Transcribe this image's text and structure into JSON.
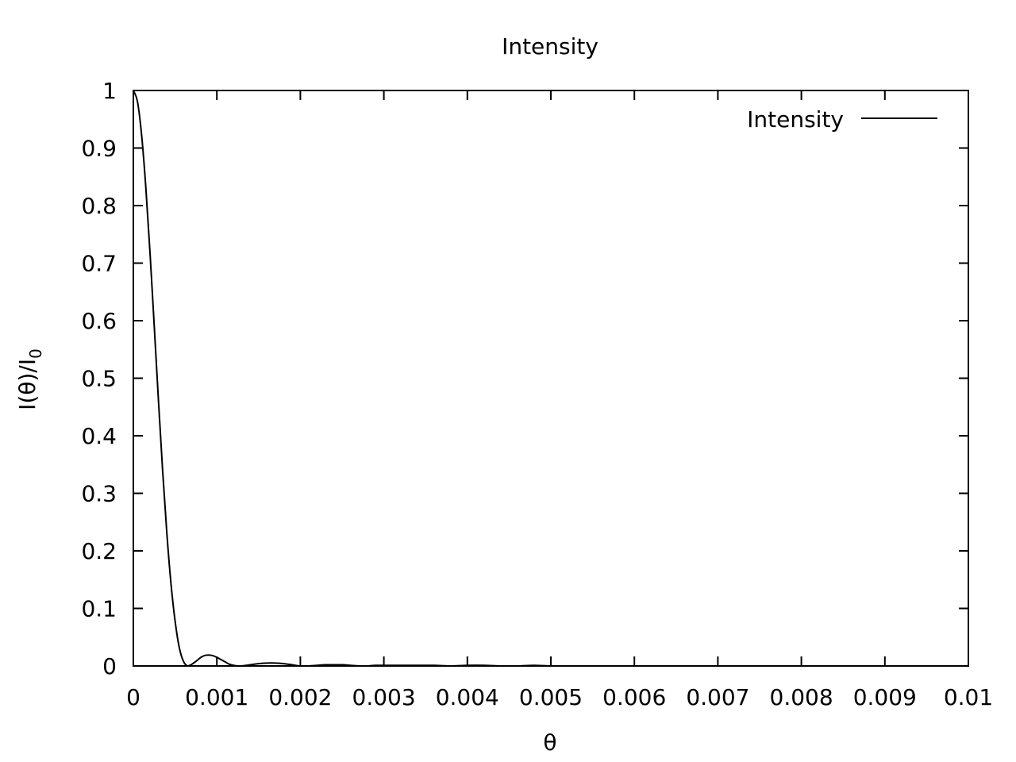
{
  "chart_data": {
    "type": "line",
    "title": "Intensity",
    "xlabel": "θ",
    "ylabel_main": "I(θ)/I",
    "ylabel_sub": "0",
    "xlim": [
      0,
      0.01
    ],
    "ylim": [
      0,
      1
    ],
    "x_ticks": [
      0,
      0.001,
      0.002,
      0.003,
      0.004,
      0.005,
      0.006,
      0.007,
      0.008,
      0.009,
      0.01
    ],
    "x_tick_labels": [
      "0",
      "0.001",
      "0.002",
      "0.003",
      "0.004",
      "0.005",
      "0.006",
      "0.007",
      "0.008",
      "0.009",
      "0.01"
    ],
    "y_ticks": [
      0,
      0.1,
      0.2,
      0.3,
      0.4,
      0.5,
      0.6,
      0.7,
      0.8,
      0.9,
      1
    ],
    "y_tick_labels": [
      "0",
      "0.1",
      "0.2",
      "0.3",
      "0.4",
      "0.5",
      "0.6",
      "0.7",
      "0.8",
      "0.9",
      "1"
    ],
    "grid": false,
    "legend": "top-right",
    "series": [
      {
        "name": "Intensity",
        "color": "#000000",
        "x": [
          0,
          5e-05,
          0.0001,
          0.00015,
          0.0002,
          0.00025,
          0.0003,
          0.00035,
          0.0004,
          0.00045,
          0.0005,
          0.00055,
          0.0006,
          0.00065,
          0.0007,
          0.00075,
          0.0008,
          0.00085,
          0.0009,
          0.00095,
          0.001,
          0.00105,
          0.0011,
          0.00115,
          0.0012,
          0.00125,
          0.0013,
          0.00135,
          0.0014,
          0.0015,
          0.0016,
          0.0017,
          0.0018,
          0.0019,
          0.002,
          0.0021,
          0.0022,
          0.0023,
          0.0024,
          0.0025,
          0.0026,
          0.0027,
          0.0028,
          0.0029,
          0.003,
          0.0032,
          0.0034,
          0.0036,
          0.0038,
          0.004,
          0.0042,
          0.0044,
          0.0046,
          0.0048,
          0.005,
          0.0055,
          0.006,
          0.0065,
          0.007,
          0.0075,
          0.008,
          0.0085,
          0.009,
          0.0095,
          0.01
        ],
        "y": [
          1.0,
          0.98,
          0.921,
          0.83,
          0.717,
          0.591,
          0.463,
          0.341,
          0.233,
          0.144,
          0.078,
          0.032,
          0.008,
          0.0,
          0.003,
          0.008,
          0.014,
          0.018,
          0.019,
          0.018,
          0.015,
          0.011,
          0.007,
          0.003,
          0.001,
          0.0,
          0.0,
          0.001,
          0.002,
          0.004,
          0.005,
          0.005,
          0.004,
          0.002,
          0.0,
          0.0,
          0.001,
          0.002,
          0.002,
          0.002,
          0.001,
          0.0,
          0.0,
          0.001,
          0.001,
          0.001,
          0.001,
          0.001,
          0.0,
          0.001,
          0.001,
          0.0,
          0.0,
          0.001,
          0.0,
          0.0,
          0.0,
          0.0,
          0.0,
          0.0,
          0.0,
          0.0,
          0.0,
          0.0,
          0.0
        ]
      }
    ]
  }
}
